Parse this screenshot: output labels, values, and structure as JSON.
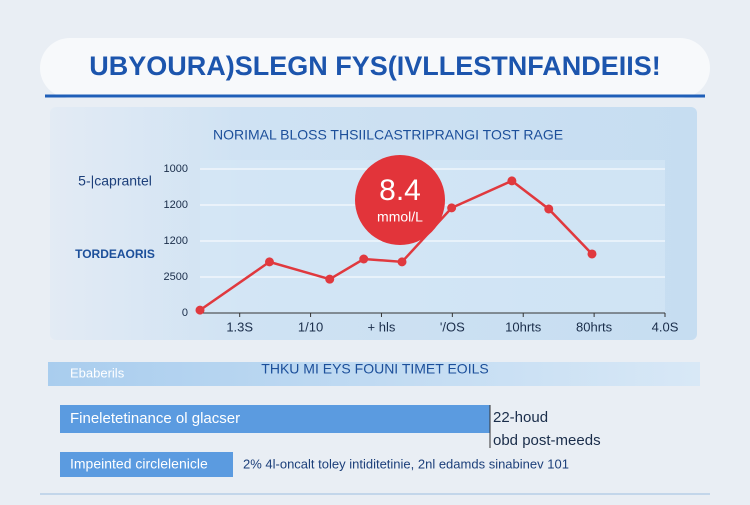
{
  "header": {
    "title": "UBYOURA)SLEGN FYS(IVLLESTNFANDEIIS!"
  },
  "chart_data": {
    "type": "line",
    "title": "NORIMAL BLOSS THSIILCASTRIPRANGI TOST RAGE",
    "labels": [
      "5-|caprantel",
      "TORDEAORIS"
    ],
    "annotation": {
      "value": "8.4",
      "unit": "mmol/L"
    },
    "x": [
      -0.56,
      0.42,
      1.27,
      1.75,
      2.29,
      2.99,
      3.84,
      4.36,
      4.97
    ],
    "values": [
      0.08,
      1.42,
      0.94,
      1.5,
      1.42,
      2.92,
      3.67,
      2.89,
      1.64
    ],
    "color": "#e0393e",
    "xlim": [
      -0.56,
      6
    ],
    "xticks": [
      {
        "value": 0,
        "label": "1.3S"
      },
      {
        "value": 1,
        "label": "1/10"
      },
      {
        "value": 2,
        "label": "+ hls"
      },
      {
        "value": 3,
        "label": "'/OS"
      },
      {
        "value": 4,
        "label": "10hrts"
      },
      {
        "value": 5,
        "label": "80hrts"
      },
      {
        "value": 6,
        "label": "4.0S"
      }
    ],
    "ylim": [
      0,
      4.25
    ],
    "yticks": [
      0,
      {
        "value": 1,
        "label": "2500"
      },
      {
        "value": 2,
        "label": "1200"
      },
      {
        "value": 3,
        "label": "1200"
      },
      {
        "value": 4,
        "label": "1000"
      }
    ],
    "grid": true
  },
  "footer": {
    "band": "Ebaberils",
    "title": "THKU MI EYS FOUNI TIMET EOILS",
    "rows": [
      {
        "label": "Fineletetinance ol glacser",
        "notes": [
          "22-houd",
          "obd post-meeds"
        ]
      },
      {
        "label": "Impeinted circlelenicle",
        "notes": [
          "2% 4l-oncalt toley intiditetinie, 2nl edamds sinabinev 101"
        ]
      }
    ]
  }
}
